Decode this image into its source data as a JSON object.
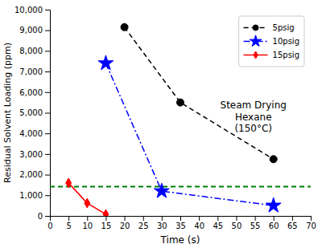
{
  "chart_data": {
    "type": "line",
    "x_label": "Time (s)",
    "y_label": "Residual Solvent Loading (ppm)",
    "series": [
      {
        "name": "5psig",
        "color": "black",
        "line_style": "dashed",
        "marker": "circle",
        "x": [
          20,
          35,
          60
        ],
        "values": [
          9150,
          5500,
          2750
        ]
      },
      {
        "name": "10psig",
        "color": "blue",
        "line_style": "dashdot",
        "marker": "star",
        "x": [
          15,
          30,
          60
        ],
        "values": [
          7400,
          1200,
          500
        ]
      },
      {
        "name": "15psig",
        "color": "red",
        "line_style": "solid",
        "marker": "diamond",
        "x": [
          5,
          10,
          15
        ],
        "values": [
          1600,
          620,
          80
        ]
      }
    ],
    "reference_line": {
      "y": 1420,
      "color": "green",
      "line_style": "dashed"
    },
    "annotation": "Steam Drying\nHexane\n(150°C)",
    "xlim": [
      0,
      70
    ],
    "ylim": [
      0,
      10000
    ],
    "xticks": [
      0,
      5,
      10,
      15,
      20,
      25,
      30,
      35,
      40,
      45,
      50,
      55,
      60,
      65,
      70
    ],
    "yticks": [
      0,
      {
        "value": 1000,
        "label": "1,000"
      },
      {
        "value": 2000,
        "label": "2,000"
      },
      {
        "value": 3000,
        "label": "3,000"
      },
      {
        "value": 4000,
        "label": "4,000"
      },
      {
        "value": 5000,
        "label": "5,000"
      },
      {
        "value": 6000,
        "label": "6,000"
      },
      {
        "value": 7000,
        "label": "7,000"
      },
      {
        "value": 8000,
        "label": "8,000"
      },
      {
        "value": 9000,
        "label": "9,000"
      },
      {
        "value": 10000,
        "label": "10,000"
      }
    ],
    "grid": false,
    "legend": "upper right"
  }
}
